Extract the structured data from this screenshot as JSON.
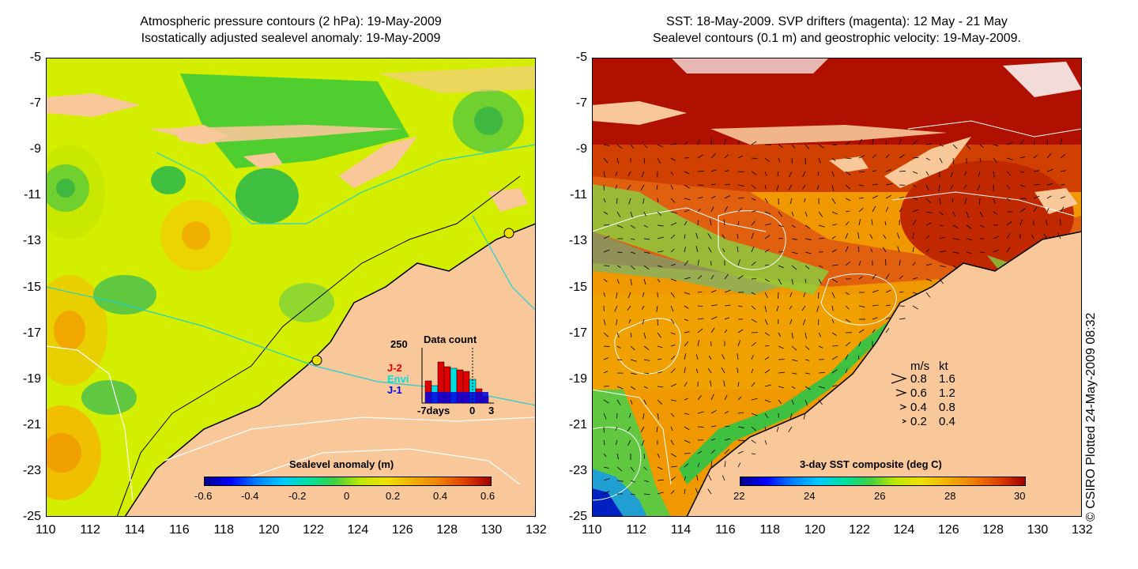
{
  "left_panel": {
    "title_line1": "Atmospheric pressure contours (2 hPa): 19-May-2009",
    "title_line2": "Isostatically adjusted sealevel anomaly: 19-May-2009",
    "colorbar_title": "Sealevel anomaly (m)",
    "colorbar_ticks": [
      "-0.6",
      "-0.4",
      "-0.2",
      "0",
      "0.2",
      "0.4",
      "0.6"
    ],
    "inset": {
      "title": "Data count",
      "ymax_label": "250",
      "legend": [
        {
          "label": "J-2",
          "color": "#e00000"
        },
        {
          "label": "Envi",
          "color": "#00e0e0"
        },
        {
          "label": "J-1",
          "color": "#0000e0"
        }
      ],
      "x_labels": [
        "-7days",
        "0",
        "3"
      ]
    }
  },
  "right_panel": {
    "title_line1": "SST: 18-May-2009. SVP drifters (magenta): 12 May - 21 May",
    "title_line2": "Sealevel contours (0.1 m) and geostrophic velocity: 19-May-2009.",
    "colorbar_title": "3-day SST composite (deg C)",
    "colorbar_ticks": [
      "22",
      "24",
      "26",
      "28",
      "30"
    ],
    "speed_legend": {
      "header_ms": "m/s",
      "header_kt": "kt",
      "rows": [
        {
          "ms": "0.8",
          "kt": "1.6"
        },
        {
          "ms": "0.6",
          "kt": "1.2"
        },
        {
          "ms": "0.4",
          "kt": "0.8"
        },
        {
          "ms": "0.2",
          "kt": "0.4"
        }
      ]
    }
  },
  "axes": {
    "lat_ticks": [
      "-5",
      "-7",
      "-9",
      "-11",
      "-13",
      "-15",
      "-17",
      "-19",
      "-21",
      "-23",
      "-25"
    ],
    "lon_ticks": [
      "110",
      "112",
      "114",
      "116",
      "118",
      "120",
      "122",
      "124",
      "126",
      "128",
      "130",
      "132"
    ]
  },
  "copyright": "© CSIRO Plotted 24-May-2009 08:32",
  "colors": {
    "land": "#f8c89a",
    "sla_background": "#d8f000",
    "sst_background": "#f09000"
  }
}
